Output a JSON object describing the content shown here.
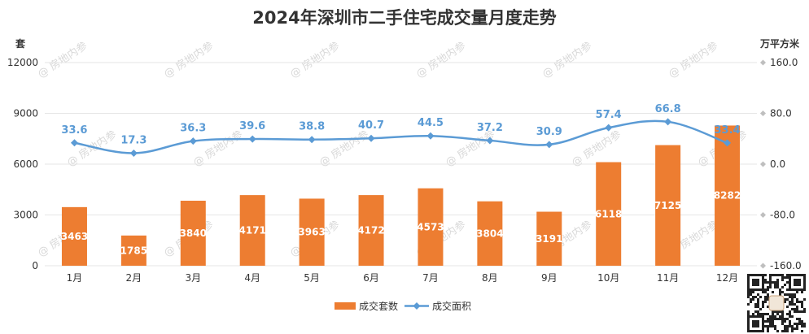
{
  "chart_data": {
    "type": "bar",
    "title": "2024年深圳市二手住宅成交量月度走势",
    "categories": [
      "1月",
      "2月",
      "3月",
      "4月",
      "5月",
      "6月",
      "7月",
      "8月",
      "9月",
      "10月",
      "11月",
      "12月"
    ],
    "series": [
      {
        "name": "成交套数",
        "type": "bar",
        "axis": "left",
        "values": [
          3463,
          1785,
          3840,
          4171,
          3963,
          4172,
          4573,
          3804,
          3191,
          6118,
          7125,
          8282
        ]
      },
      {
        "name": "成交面积",
        "type": "line",
        "axis": "right",
        "values": [
          33.6,
          17.3,
          36.3,
          39.6,
          38.8,
          40.7,
          44.5,
          37.2,
          30.9,
          57.4,
          66.8,
          33.4
        ]
      }
    ],
    "y_left": {
      "label": "套",
      "ylim": [
        0,
        12000
      ],
      "ticks": [
        "0",
        "3000",
        "6000",
        "9000",
        "12000"
      ]
    },
    "y_right": {
      "label": "万平方米",
      "ylim": [
        -160,
        160
      ],
      "ticks": [
        "-160.0",
        "-80.0",
        "0.0",
        "80.0",
        "160.0"
      ]
    },
    "grid": true,
    "legend_position": "bottom",
    "colors": {
      "bar": "#ed7d31",
      "line": "#5b9bd5",
      "grid": "#e6e6e6"
    },
    "watermark": "@ 房地内参",
    "qr_icon": "qr-code-icon"
  }
}
